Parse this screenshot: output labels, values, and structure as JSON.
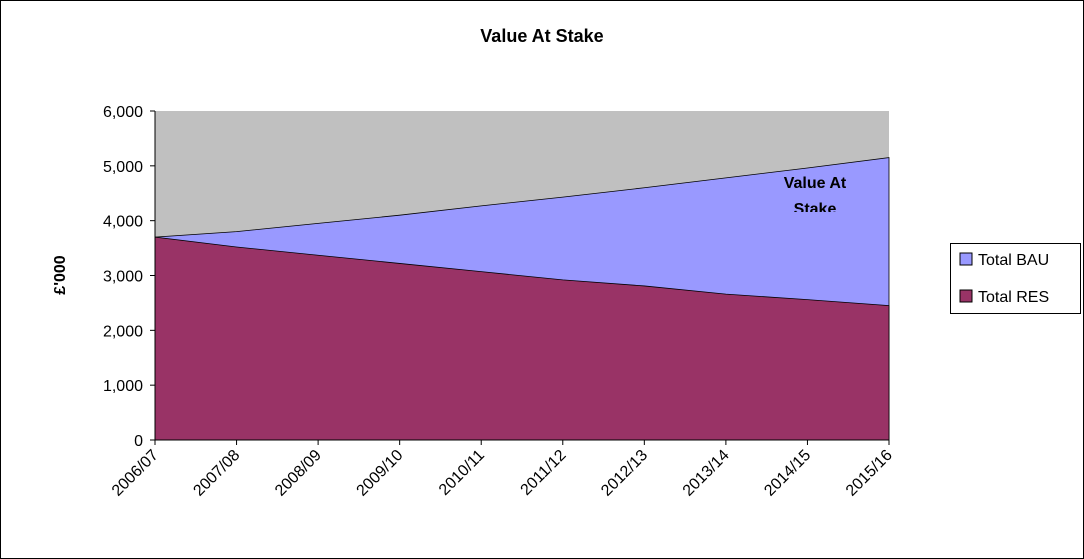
{
  "chart_data": {
    "type": "area",
    "title": "Value At Stake",
    "y_label": "£'000",
    "annotation": "Value At Stake",
    "categories": [
      "2006/07",
      "2007/08",
      "2008/09",
      "2009/10",
      "2010/11",
      "2011/12",
      "2012/13",
      "2013/14",
      "2014/15",
      "2015/16"
    ],
    "series": [
      {
        "name": "Total BAU",
        "color": "#9999ff",
        "values": [
          3700,
          3800,
          3950,
          4100,
          4270,
          4430,
          4600,
          4780,
          4960,
          5150
        ]
      },
      {
        "name": "Total RES",
        "color": "#993366",
        "values": [
          3700,
          3520,
          3370,
          3220,
          3070,
          2920,
          2810,
          2660,
          2560,
          2450
        ]
      }
    ],
    "ylim": [
      0,
      6000
    ],
    "yticks": [
      0,
      {
        "value": 1000,
        "label": "1,000"
      },
      {
        "value": 2000,
        "label": "2,000"
      },
      {
        "value": 3000,
        "label": "3,000"
      },
      {
        "value": 4000,
        "label": "4,000"
      },
      {
        "value": 5000,
        "label": "5,000"
      },
      {
        "value": 6000,
        "label": "6,000"
      }
    ],
    "plot_background": "#c0c0c0",
    "legend": "right"
  }
}
